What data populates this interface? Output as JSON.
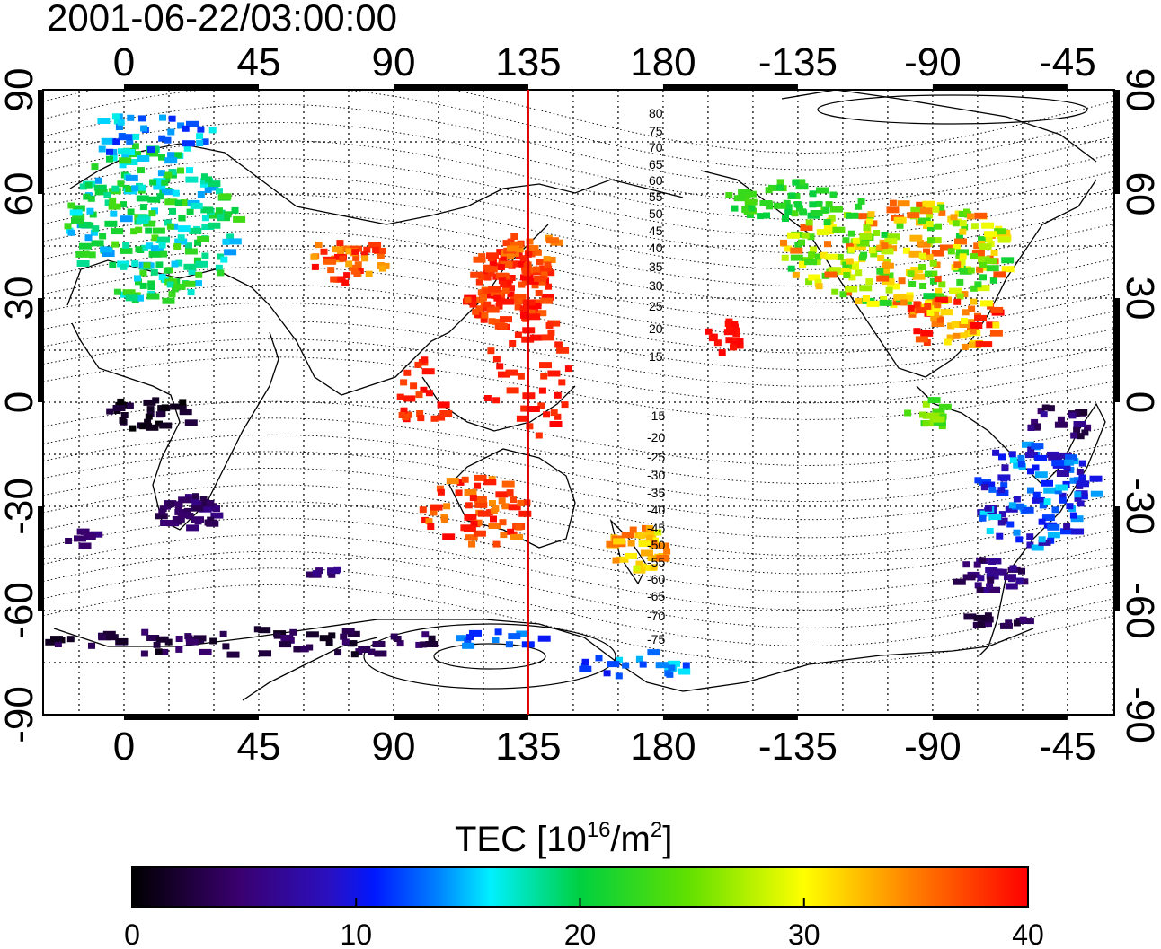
{
  "map": {
    "timestamp": "2001-06-22/03:00:00",
    "top_lon_labels": [
      "0",
      "45",
      "90",
      "135",
      "180",
      "-135",
      "-90",
      "-45"
    ],
    "bottom_lon_labels": [
      "0",
      "45",
      "90",
      "135",
      "180",
      "-135",
      "-90",
      "-45"
    ],
    "left_lat_labels": [
      "90",
      "60",
      "30",
      "0",
      "-30",
      "-60",
      "-90"
    ],
    "right_lat_labels": [
      "90",
      "60",
      "30",
      "0",
      "-30",
      "-60",
      "-90"
    ],
    "meridian_line": {
      "lon": 135,
      "color": "#e00000"
    },
    "magnetic_latitude_labels_north": [
      "80",
      "75",
      "70",
      "65",
      "60",
      "55",
      "50",
      "45",
      "40",
      "35",
      "30",
      "25",
      "20",
      "15"
    ],
    "magnetic_latitude_labels_south": [
      "-15",
      "-20",
      "-25",
      "-30",
      "-35",
      "-40",
      "-45",
      "-50",
      "-55",
      "-60",
      "-65",
      "-70",
      "-75"
    ]
  },
  "colorbar": {
    "title_main": "TEC  [10",
    "title_sup": "16",
    "title_unit": "/m",
    "title_sup2": "2",
    "title_end": "]",
    "range": [
      0,
      40
    ],
    "ticks": [
      "0",
      "10",
      "20",
      "30",
      "40"
    ],
    "colors": [
      "#000000",
      "#3a0070",
      "#1a10d8",
      "#0050ff",
      "#00e0ff",
      "#00d040",
      "#60e000",
      "#ffff00",
      "#ff8000",
      "#ff0000"
    ]
  }
}
